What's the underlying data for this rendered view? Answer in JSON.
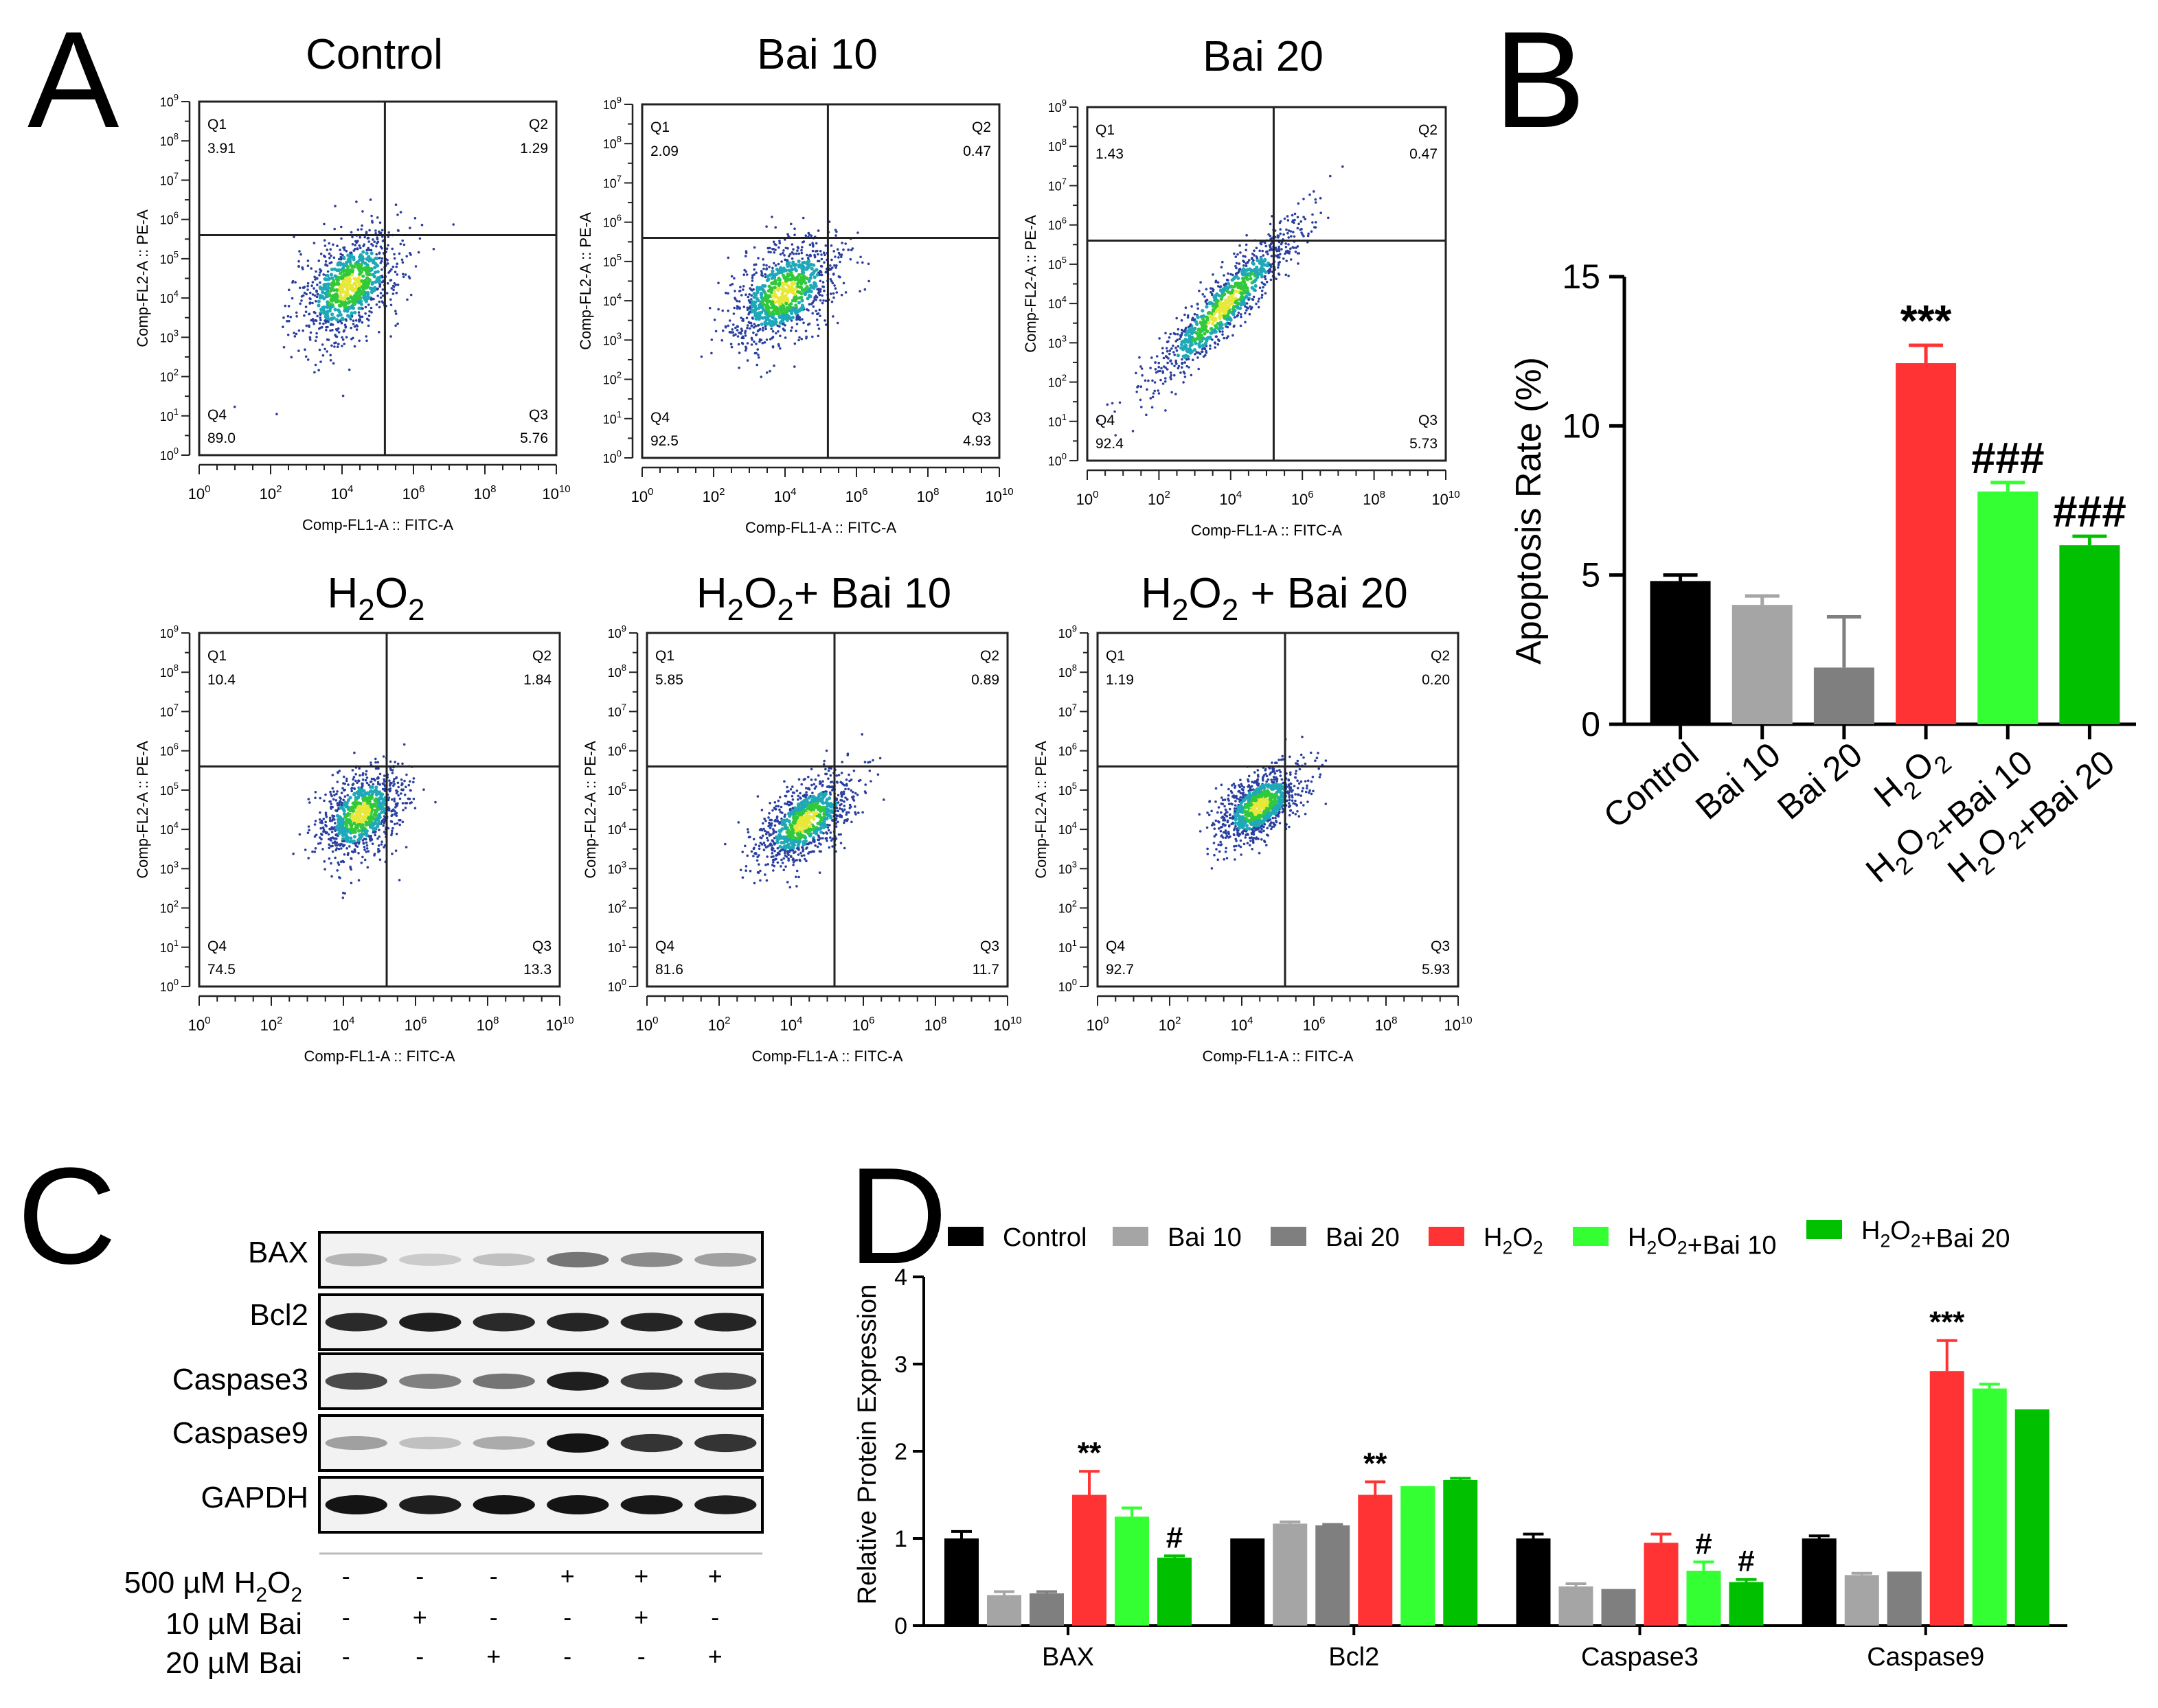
{
  "panels": {
    "a": "A",
    "b": "B",
    "c": "C",
    "d": "D"
  },
  "chart_data": [
    {
      "id": "A",
      "type": "scatter",
      "subtype": "flow-cytometry-quadrant-plots",
      "xlabel": "Comp-FL1-A :: FITC-A",
      "ylabel": "Comp-FL2-A :: PE-A",
      "tick_base": "10",
      "tick_exponents": [
        "0",
        "2",
        "4",
        "6",
        "8",
        "10"
      ],
      "y_tick_exponents": [
        "0",
        "1",
        "2",
        "3",
        "4",
        "5",
        "6",
        "7",
        "8",
        "9"
      ],
      "xlim": [
        0,
        10
      ],
      "ylim": [
        0,
        9
      ],
      "gate": {
        "x": 5.2,
        "y": 5.6
      },
      "plots": [
        {
          "title": "Control",
          "title_sub": "",
          "title_rest": "",
          "q1": "3.91",
          "q2": "1.29",
          "q3": "5.76",
          "q4": "89.0",
          "center": [
            4.2,
            4.3
          ],
          "spread": [
            0.75,
            0.75
          ],
          "corr": 0.45
        },
        {
          "title": "Bai 10",
          "title_sub": "",
          "title_rest": "",
          "q1": "2.09",
          "q2": "0.47",
          "q3": "4.93",
          "q4": "92.5",
          "center": [
            4.0,
            4.2
          ],
          "spread": [
            0.8,
            0.7
          ],
          "corr": 0.45
        },
        {
          "title": "Bai 20",
          "title_sub": "",
          "title_rest": "",
          "q1": "1.43",
          "q2": "0.47",
          "q3": "5.73",
          "q4": "92.4",
          "center": [
            3.8,
            3.9
          ],
          "spread": [
            1.1,
            1.1
          ],
          "corr": 0.92
        },
        {
          "title": "H",
          "title_sub": "2",
          "title_rest": "O",
          "title_sub2": "2",
          "title_tail": "",
          "q1": "10.4",
          "q2": "1.84",
          "q3": "13.3",
          "q4": "74.5",
          "center": [
            4.5,
            4.4
          ],
          "spread": [
            0.6,
            0.6
          ],
          "corr": 0.4
        },
        {
          "title": "H",
          "title_sub": "2",
          "title_rest": "O",
          "title_sub2": "2",
          "title_tail": "+ Bai 10",
          "q1": "5.85",
          "q2": "0.89",
          "q3": "11.7",
          "q4": "81.6",
          "center": [
            4.4,
            4.2
          ],
          "spread": [
            0.7,
            0.6
          ],
          "corr": 0.6
        },
        {
          "title": "H",
          "title_sub": "2",
          "title_rest": "O",
          "title_sub2": "2",
          "title_tail": " + Bai 20",
          "q1": "1.19",
          "q2": "0.20",
          "q3": "5.93",
          "q4": "92.7",
          "center": [
            4.5,
            4.6
          ],
          "spread": [
            0.6,
            0.5
          ],
          "corr": 0.55
        }
      ],
      "quadrant_labels": [
        "Q1",
        "Q2",
        "Q3",
        "Q4"
      ]
    },
    {
      "id": "B",
      "type": "bar",
      "ylabel": "Apoptosis Rate (%)",
      "ylim": [
        0,
        15
      ],
      "yticks": [
        "0",
        "5",
        "10",
        "15"
      ],
      "categories": [
        "Control",
        "Bai 10",
        "Bai 20",
        "H2O2",
        "H2O2+Bai 10",
        "H2O2+Bai 20"
      ],
      "values": [
        4.8,
        4.0,
        1.9,
        12.1,
        7.8,
        6.0
      ],
      "errors": [
        0.2,
        0.3,
        1.7,
        0.6,
        0.3,
        0.3
      ],
      "colors": [
        "#000000",
        "#a5a5a5",
        "#7f7f7f",
        "#ff3333",
        "#33ff33",
        "#00c000"
      ],
      "annotations": [
        "",
        "",
        "",
        "***",
        "###",
        "###"
      ]
    },
    {
      "id": "C",
      "type": "table",
      "subtype": "western-blot",
      "bands": [
        "BAX",
        "Bcl2",
        "Caspase3",
        "Caspase9",
        "GAPDH"
      ],
      "band_intensity": [
        [
          0.25,
          0.15,
          0.2,
          0.55,
          0.45,
          0.35
        ],
        [
          0.9,
          0.95,
          0.9,
          0.92,
          0.92,
          0.92
        ],
        [
          0.75,
          0.5,
          0.55,
          0.95,
          0.8,
          0.75
        ],
        [
          0.35,
          0.2,
          0.3,
          1.0,
          0.85,
          0.85
        ],
        [
          1.0,
          0.95,
          1.0,
          1.0,
          0.98,
          0.95
        ]
      ],
      "conditions": [
        {
          "label": "500 µM H",
          "sub": "2",
          "mid": "O",
          "sub2": "2",
          "signs": [
            "-",
            "-",
            "-",
            "+",
            "+",
            "+"
          ]
        },
        {
          "label": "10 µM Bai",
          "signs": [
            "-",
            "+",
            "-",
            "-",
            "+",
            "-"
          ]
        },
        {
          "label": "20 µM Bai",
          "signs": [
            "-",
            "-",
            "+",
            "-",
            "-",
            "+"
          ]
        }
      ]
    },
    {
      "id": "D",
      "type": "bar",
      "ylabel": "Relative Protein Expression",
      "ylim": [
        0,
        4
      ],
      "yticks": [
        "0",
        "1",
        "2",
        "3",
        "4"
      ],
      "categories": [
        "BAX",
        "Bcl2",
        "Caspase3",
        "Caspase9"
      ],
      "legend": [
        "Control",
        "Bai 10",
        "Bai 20",
        "H2O2",
        "H2O2+Bai 10",
        "H2O2+Bai 20"
      ],
      "legend_placement": "top",
      "series": [
        {
          "name": "Control",
          "color": "#000000",
          "values": [
            1.0,
            1.0,
            1.0,
            1.0
          ],
          "errors": [
            0.08,
            0.0,
            0.05,
            0.03
          ]
        },
        {
          "name": "Bai 10",
          "color": "#a5a5a5",
          "values": [
            0.35,
            1.17,
            0.45,
            0.58
          ],
          "errors": [
            0.04,
            0.02,
            0.03,
            0.02
          ]
        },
        {
          "name": "Bai 20",
          "color": "#7f7f7f",
          "values": [
            0.37,
            1.15,
            0.42,
            0.62
          ],
          "errors": [
            0.02,
            0.01,
            0.0,
            0.0
          ]
        },
        {
          "name": "H2O2",
          "color": "#ff3333",
          "values": [
            1.5,
            1.5,
            0.95,
            2.92
          ],
          "errors": [
            0.27,
            0.15,
            0.1,
            0.35
          ]
        },
        {
          "name": "H2O2+Bai 10",
          "color": "#33ff33",
          "values": [
            1.25,
            1.6,
            0.63,
            2.72
          ],
          "errors": [
            0.1,
            0.0,
            0.1,
            0.05
          ]
        },
        {
          "name": "H2O2+Bai 20",
          "color": "#00c000",
          "values": [
            0.78,
            1.67,
            0.5,
            2.48
          ],
          "errors": [
            0.02,
            0.02,
            0.03,
            0.0
          ]
        }
      ],
      "annotations": [
        {
          "category": "BAX",
          "series": "H2O2",
          "text": "**"
        },
        {
          "category": "BAX",
          "series": "H2O2+Bai 20",
          "text": "#"
        },
        {
          "category": "Bcl2",
          "series": "H2O2",
          "text": "**"
        },
        {
          "category": "Caspase3",
          "series": "H2O2+Bai 10",
          "text": "#"
        },
        {
          "category": "Caspase3",
          "series": "H2O2+Bai 20",
          "text": "#"
        },
        {
          "category": "Caspase9",
          "series": "H2O2",
          "text": "***"
        }
      ]
    }
  ]
}
